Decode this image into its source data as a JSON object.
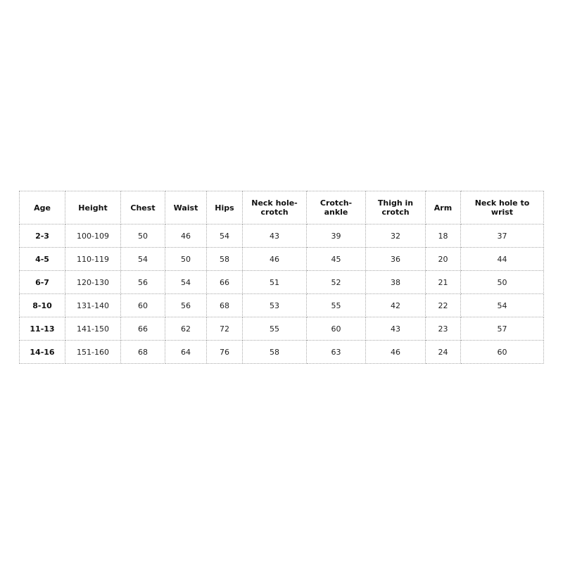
{
  "table": {
    "headers": [
      "Age",
      "Height",
      "Chest",
      "Waist",
      "Hips",
      "Neck hole-crotch",
      "Crotch-ankle",
      "Thigh in crotch",
      "Arm",
      "Neck hole to wrist"
    ],
    "rows": [
      [
        "2-3",
        "100-109",
        "50",
        "46",
        "54",
        "43",
        "39",
        "32",
        "18",
        "37"
      ],
      [
        "4-5",
        "110-119",
        "54",
        "50",
        "58",
        "46",
        "45",
        "36",
        "20",
        "44"
      ],
      [
        "6-7",
        "120-130",
        "56",
        "54",
        "66",
        "51",
        "52",
        "38",
        "21",
        "50"
      ],
      [
        "8-10",
        "131-140",
        "60",
        "56",
        "68",
        "53",
        "55",
        "42",
        "22",
        "54"
      ],
      [
        "11-13",
        "141-150",
        "66",
        "62",
        "72",
        "55",
        "60",
        "43",
        "23",
        "57"
      ],
      [
        "14-16",
        "151-160",
        "68",
        "64",
        "76",
        "58",
        "63",
        "46",
        "24",
        "60"
      ]
    ]
  }
}
